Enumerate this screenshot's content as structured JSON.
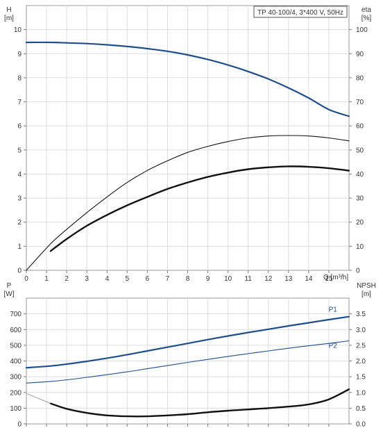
{
  "chart_data": [
    {
      "type": "line",
      "title": "TP 40-100/4, 3*400 V, 50Hz",
      "xlabel": "Q [m³/h]",
      "ylabel": "H [m]",
      "ylabel_lines": [
        "H",
        "[m]"
      ],
      "y2label_lines": [
        "eta",
        "[%]"
      ],
      "xlim": [
        0,
        16
      ],
      "xticks": [
        "0",
        "1",
        "2",
        "3",
        "4",
        "5",
        "6",
        "7",
        "8",
        "9",
        "10",
        "11",
        "12",
        "13",
        "14",
        "15"
      ],
      "ylim": [
        0,
        11
      ],
      "yticks": [
        "0",
        "1",
        "2",
        "3",
        "4",
        "5",
        "6",
        "7",
        "8",
        "9",
        "10"
      ],
      "y2lim": [
        0,
        110
      ],
      "y2ticks": [
        "0",
        "10",
        "20",
        "30",
        "40",
        "50",
        "60",
        "70",
        "80",
        "90",
        "100"
      ],
      "grid": true,
      "series": [
        {
          "axis": "left",
          "color": "#1f4e8c",
          "width": 2.2,
          "x": [
            0,
            1.2,
            2,
            3,
            4,
            5,
            6,
            7,
            8,
            9,
            10,
            11,
            12,
            13,
            14,
            15,
            16
          ],
          "y": [
            9.47,
            9.47,
            9.45,
            9.42,
            9.37,
            9.3,
            9.21,
            9.1,
            8.95,
            8.76,
            8.53,
            8.26,
            7.95,
            7.58,
            7.16,
            6.68,
            6.4
          ]
        },
        {
          "axis": "right",
          "color": "#111111",
          "width": 1.1,
          "x": [
            0,
            1.2,
            2,
            3,
            4,
            5,
            6,
            7,
            8,
            9,
            10,
            11,
            12,
            13,
            14,
            15,
            16
          ],
          "y": [
            0,
            11,
            17,
            24,
            30.5,
            36.5,
            41.5,
            45.5,
            49,
            51.5,
            53.5,
            55,
            55.8,
            56,
            55.8,
            55,
            53.8
          ]
        },
        {
          "axis": "left",
          "color": "#111111",
          "width": 2.4,
          "x": [
            1.2,
            2,
            3,
            4,
            5,
            6,
            7,
            8,
            9,
            10,
            11,
            12,
            13,
            14,
            15,
            16
          ],
          "y": [
            0.8,
            1.3,
            1.85,
            2.3,
            2.7,
            3.05,
            3.38,
            3.65,
            3.88,
            4.06,
            4.2,
            4.28,
            4.32,
            4.3,
            4.24,
            4.14
          ]
        }
      ]
    },
    {
      "type": "line",
      "ylabel_lines": [
        "P",
        "[W]"
      ],
      "y2label_lines": [
        "NPSH",
        "[m]"
      ],
      "xlim": [
        0,
        16
      ],
      "ylim": [
        0,
        800
      ],
      "yticks": [
        "0",
        "100",
        "200",
        "300",
        "400",
        "500",
        "600",
        "700"
      ],
      "y2lim": [
        0,
        4
      ],
      "y2ticks": [
        "0.0",
        "0.5",
        "1.0",
        "1.5",
        "2.0",
        "2.5",
        "3.0",
        "3.5"
      ],
      "grid": true,
      "series": [
        {
          "name": "P1",
          "axis": "left",
          "color": "#1f4e8c",
          "width": 2.2,
          "label_at": [
            15.2,
            713
          ],
          "x": [
            0,
            1.2,
            2,
            3,
            4,
            5,
            6,
            7,
            8,
            9,
            10,
            11,
            12,
            13,
            14,
            15,
            16
          ],
          "y": [
            357,
            368,
            380,
            398,
            418,
            440,
            464,
            488,
            512,
            536,
            559,
            581,
            602,
            623,
            643,
            663,
            682
          ]
        },
        {
          "name": "P2",
          "axis": "left",
          "color": "#1f4e8c",
          "width": 1.1,
          "label_at": [
            15.2,
            485
          ],
          "x": [
            0,
            1.2,
            2,
            3,
            4,
            5,
            6,
            7,
            8,
            9,
            10,
            11,
            12,
            13,
            14,
            15,
            16
          ],
          "y": [
            260,
            270,
            280,
            296,
            313,
            331,
            351,
            371,
            391,
            410,
            429,
            447,
            464,
            481,
            497,
            512,
            528
          ]
        },
        {
          "axis": "right",
          "color": "#111111",
          "width": 2.4,
          "x": [
            1.2,
            2,
            3,
            4,
            5,
            6,
            7,
            8,
            9,
            10,
            11,
            12,
            13,
            14,
            15,
            16
          ],
          "y": [
            0.65,
            0.48,
            0.35,
            0.27,
            0.24,
            0.24,
            0.27,
            0.31,
            0.37,
            0.42,
            0.46,
            0.5,
            0.55,
            0.62,
            0.78,
            1.1
          ]
        },
        {
          "axis": "right",
          "color": "#888888",
          "width": 0.8,
          "x": [
            0,
            1.2
          ],
          "y": [
            0.97,
            0.65
          ]
        }
      ]
    }
  ]
}
